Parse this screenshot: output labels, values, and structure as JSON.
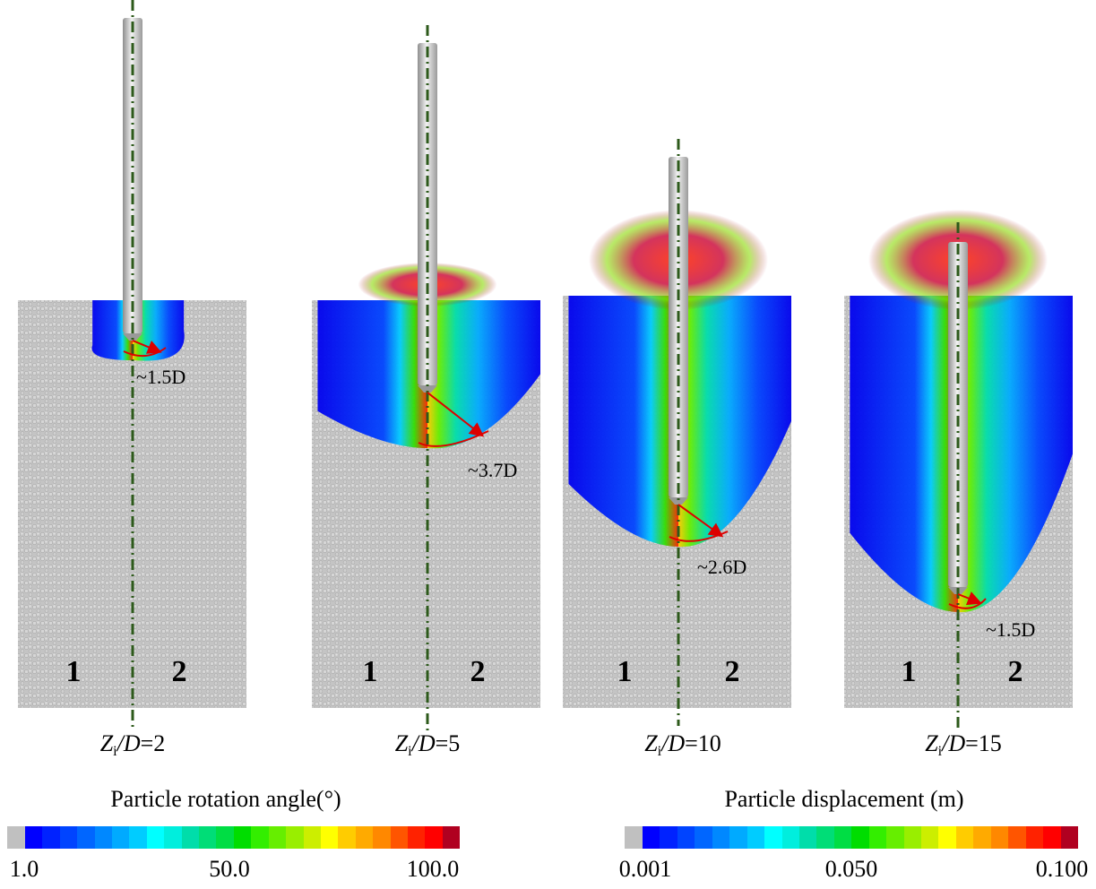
{
  "panels": [
    {
      "caption_pre": "Z",
      "caption_sub": "i",
      "caption_mid": "/D",
      "caption_val": "=2",
      "annotation": "~1.5D",
      "zone_left": "1",
      "zone_right": "2"
    },
    {
      "caption_pre": "Z",
      "caption_sub": "i",
      "caption_mid": "/D",
      "caption_val": "=5",
      "annotation": "~3.7D",
      "zone_left": "1",
      "zone_right": "2"
    },
    {
      "caption_pre": "Z",
      "caption_sub": "i",
      "caption_mid": "/D",
      "caption_val": "=10",
      "annotation": "~2.6D",
      "zone_left": "1",
      "zone_right": "2"
    },
    {
      "caption_pre": "Z",
      "caption_sub": "i",
      "caption_mid": "/D",
      "caption_val": "=15",
      "annotation": "~1.5D",
      "zone_left": "1",
      "zone_right": "2"
    }
  ],
  "colorbars": [
    {
      "title": "Particle rotation angle(°)",
      "ticks": [
        "1.0",
        "50.0",
        "100.0"
      ]
    },
    {
      "title": "Particle displacement (m)",
      "ticks": [
        "0.001",
        "0.050",
        "0.100"
      ]
    }
  ],
  "colors": {
    "below_min": "#c0c0c0",
    "scale": [
      "#0000ff",
      "#0022ff",
      "#0044ff",
      "#0066ff",
      "#0088ff",
      "#00aaff",
      "#00ccff",
      "#00ffff",
      "#00eedd",
      "#00ddaa",
      "#00dd77",
      "#00dd44",
      "#00dd00",
      "#33ee00",
      "#66ee00",
      "#99ee00",
      "#ccee00",
      "#ffff00",
      "#ffcc00",
      "#ffaa00",
      "#ff8800",
      "#ff5500",
      "#ff2200",
      "#ff0000",
      "#b00020"
    ],
    "centerline": "#2d5a1b",
    "arrow": "#dd0000",
    "soil": "#c6c6c6"
  }
}
